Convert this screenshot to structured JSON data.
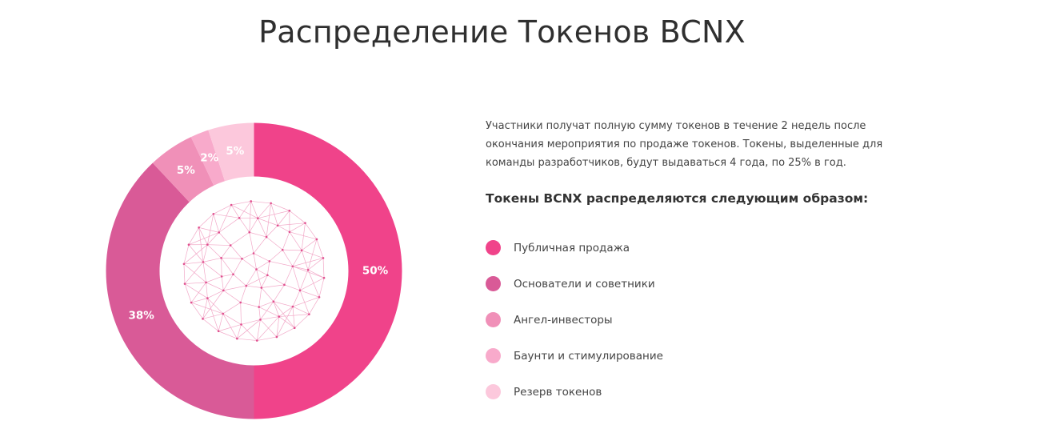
{
  "header": {
    "title": "Распределение Токенов BCNX"
  },
  "info": {
    "description": "Участники получат полную сумму токенов в течение 2 недель после окончания мероприятия по продаже токенов. Токены, выделенные для команды разработчиков, будут выдаваться 4 года, по 25% в год.",
    "subtitle": "Токены BCNX распределяются следующим образом:"
  },
  "chart_data": {
    "type": "pie",
    "title": "",
    "donut": true,
    "center_graphic": "geodesic-sphere",
    "slices": [
      {
        "label": "Публичная продажа",
        "value": 50,
        "display": "50%",
        "color": "#f0438a"
      },
      {
        "label": "Основатели и советники",
        "value": 38,
        "display": "38%",
        "color": "#d95a97"
      },
      {
        "label": "Ангел-инвесторы",
        "value": 5,
        "display": "5%",
        "color": "#f090b8"
      },
      {
        "label": "Баунти и стимулирование",
        "value": 2,
        "display": "2%",
        "color": "#f8aacb"
      },
      {
        "label": "Резерв токенов",
        "value": 5,
        "display": "5%",
        "color": "#fcc8dc"
      }
    ],
    "legend_position": "right"
  }
}
